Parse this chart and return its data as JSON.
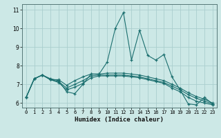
{
  "xlabel": "Humidex (Indice chaleur)",
  "bg_color": "#cce8e6",
  "grid_color": "#aacece",
  "line_color": "#1a6e6e",
  "xlim": [
    -0.5,
    23.5
  ],
  "ylim": [
    5.75,
    11.3
  ],
  "xticks": [
    0,
    1,
    2,
    3,
    4,
    5,
    6,
    7,
    8,
    9,
    10,
    11,
    12,
    13,
    14,
    15,
    16,
    17,
    18,
    19,
    20,
    21,
    22,
    23
  ],
  "yticks": [
    6,
    7,
    8,
    9,
    10,
    11
  ],
  "series": [
    [
      6.3,
      7.3,
      7.5,
      7.3,
      7.2,
      6.6,
      6.5,
      7.0,
      7.55,
      7.55,
      8.2,
      10.0,
      10.85,
      8.3,
      9.9,
      8.55,
      8.3,
      8.6,
      7.4,
      6.7,
      5.95,
      5.9,
      6.3,
      5.95
    ],
    [
      6.3,
      7.3,
      7.5,
      7.25,
      7.25,
      6.95,
      7.2,
      7.4,
      7.55,
      7.55,
      7.6,
      7.6,
      7.6,
      7.55,
      7.5,
      7.4,
      7.3,
      7.2,
      7.0,
      6.8,
      6.55,
      6.35,
      6.2,
      6.0
    ],
    [
      6.3,
      7.3,
      7.5,
      7.25,
      7.15,
      6.8,
      7.0,
      7.2,
      7.45,
      7.5,
      7.5,
      7.5,
      7.5,
      7.45,
      7.4,
      7.3,
      7.2,
      7.1,
      6.9,
      6.7,
      6.45,
      6.25,
      6.1,
      5.95
    ],
    [
      6.3,
      7.3,
      7.5,
      7.25,
      7.1,
      6.7,
      6.85,
      7.05,
      7.35,
      7.45,
      7.45,
      7.45,
      7.45,
      7.4,
      7.35,
      7.25,
      7.15,
      7.05,
      6.8,
      6.6,
      6.3,
      6.1,
      6.0,
      5.9
    ]
  ]
}
